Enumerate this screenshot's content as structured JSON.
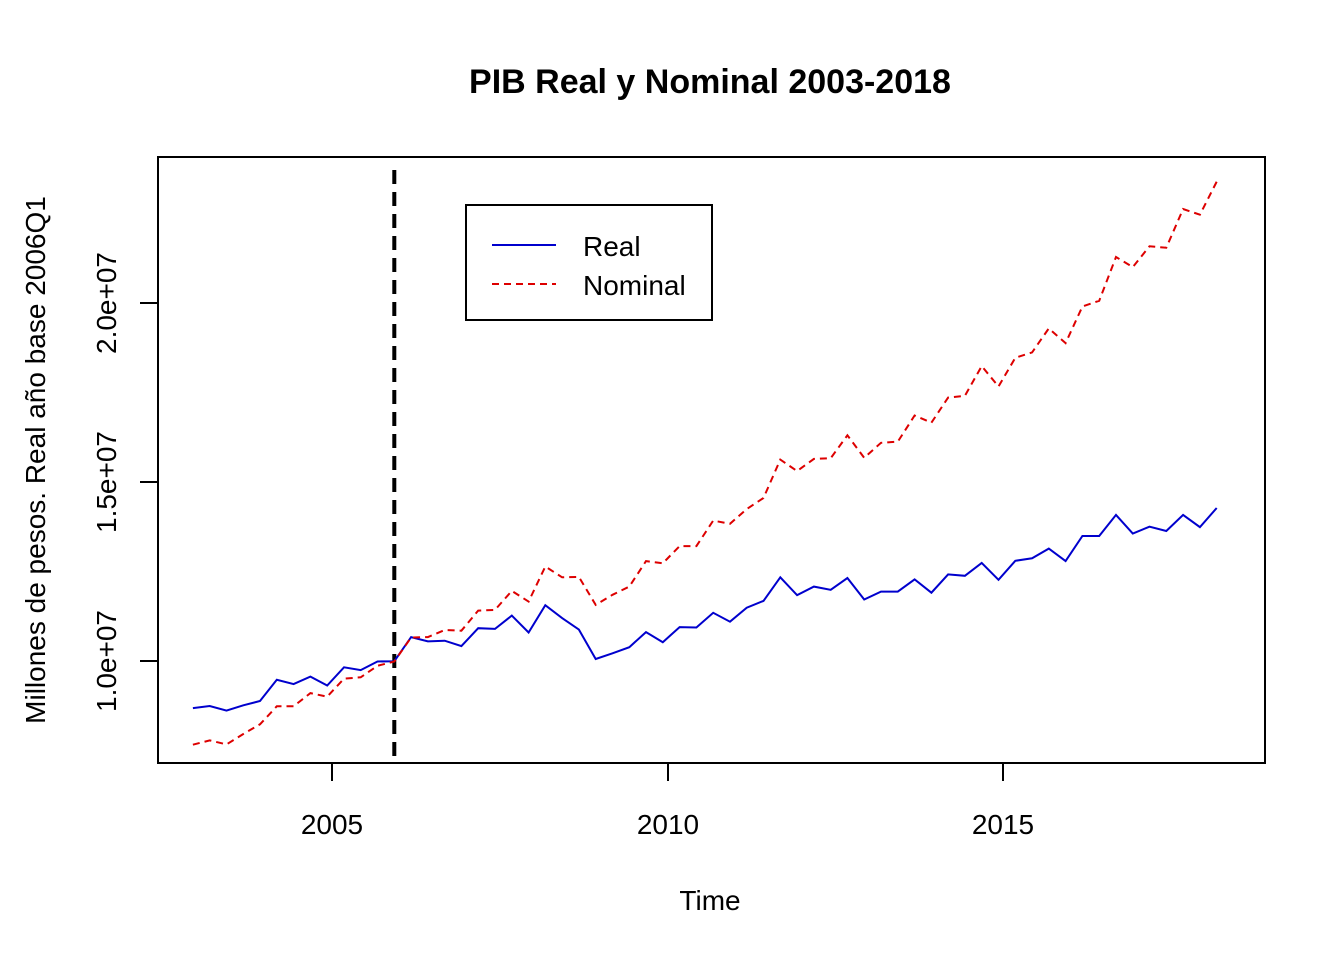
{
  "chart_data": {
    "type": "line",
    "title": "PIB Real y Nominal 2003-2018",
    "xlabel": "Time",
    "ylabel": "Millones de pesos. Real año base 2006Q1",
    "xlim": [
      2002.48,
      2018.97
    ],
    "ylim": [
      7250000,
      24150000
    ],
    "x_ticks": [
      2005,
      2010,
      2015
    ],
    "x_tick_labels": [
      "2005",
      "2010",
      "2015"
    ],
    "y_ticks": [
      10000000,
      15000000,
      20000000
    ],
    "y_tick_labels": [
      "1.0e+07",
      "1.5e+07",
      "2.0e+07"
    ],
    "legend": {
      "position": "top-center",
      "entries": [
        "Real",
        "Nominal"
      ]
    },
    "reference_line": {
      "x": 2006.0,
      "style": "dashed",
      "color": "#000000"
    },
    "x_start": 2003.0,
    "x_step": 0.25,
    "series": [
      {
        "name": "Real",
        "color": "#0000CD",
        "dash": "solid",
        "values": [
          8780000,
          8840000,
          8710000,
          8860000,
          8980000,
          9570000,
          9450000,
          9660000,
          9410000,
          9920000,
          9840000,
          10080000,
          10090000,
          10760000,
          10640000,
          10660000,
          10510000,
          11010000,
          10990000,
          11360000,
          10890000,
          11650000,
          11290000,
          10970000,
          10150000,
          10310000,
          10480000,
          10900000,
          10620000,
          11040000,
          11030000,
          11440000,
          11190000,
          11580000,
          11770000,
          12430000,
          11930000,
          12170000,
          12080000,
          12410000,
          11810000,
          12030000,
          12030000,
          12370000,
          12000000,
          12510000,
          12470000,
          12830000,
          12360000,
          12890000,
          12960000,
          13230000,
          12880000,
          13580000,
          13580000,
          14170000,
          13650000,
          13840000,
          13720000,
          14170000,
          13830000,
          14360000
        ]
      },
      {
        "name": "Nominal",
        "color": "#DD0000",
        "dash": "dashed",
        "values": [
          7760000,
          7880000,
          7770000,
          8060000,
          8330000,
          8830000,
          8830000,
          9200000,
          9100000,
          9600000,
          9640000,
          9960000,
          10080000,
          10750000,
          10760000,
          10960000,
          10940000,
          11500000,
          11520000,
          12050000,
          11750000,
          12730000,
          12430000,
          12440000,
          11660000,
          11940000,
          12170000,
          12880000,
          12820000,
          13300000,
          13300000,
          14010000,
          13920000,
          14330000,
          14640000,
          15710000,
          15390000,
          15730000,
          15750000,
          16390000,
          15760000,
          16180000,
          16210000,
          16940000,
          16740000,
          17440000,
          17490000,
          18320000,
          17750000,
          18550000,
          18700000,
          19370000,
          18960000,
          19980000,
          20140000,
          21360000,
          21080000,
          21660000,
          21620000,
          22700000,
          22540000,
          23460000
        ]
      }
    ]
  }
}
